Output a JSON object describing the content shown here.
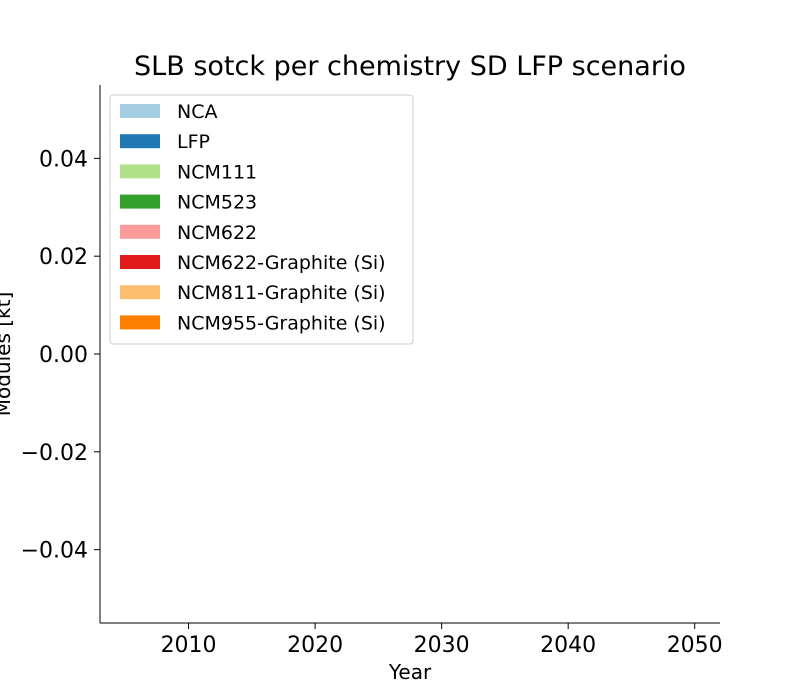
{
  "chart_data": {
    "type": "area",
    "title": "SLB sotck per chemistry SD LFP scenario",
    "xlabel": "Year",
    "ylabel": "Modules [kt]",
    "xlim": [
      2003,
      2052
    ],
    "ylim": [
      -0.055,
      0.055
    ],
    "x_ticks": [
      2010,
      2020,
      2030,
      2040,
      2050
    ],
    "y_ticks": [
      0.04,
      0.02,
      0.0,
      -0.02,
      -0.04
    ],
    "y_tick_labels": [
      "0.04",
      "0.02",
      "0.00",
      "−0.02",
      "−0.04"
    ],
    "grid": false,
    "legend_position": "top-left",
    "series": [
      {
        "name": "NCA",
        "color": "#a6cee3",
        "values": []
      },
      {
        "name": "LFP",
        "color": "#1f78b4",
        "values": []
      },
      {
        "name": "NCM111",
        "color": "#b2df8a",
        "values": []
      },
      {
        "name": "NCM523",
        "color": "#33a02c",
        "values": []
      },
      {
        "name": "NCM622",
        "color": "#fb9a99",
        "values": []
      },
      {
        "name": "NCM622-Graphite (Si)",
        "color": "#e31a1c",
        "values": []
      },
      {
        "name": "NCM811-Graphite (Si)",
        "color": "#fdbf6f",
        "values": []
      },
      {
        "name": "NCM955-Graphite (Si)",
        "color": "#ff7f00",
        "values": []
      }
    ]
  }
}
